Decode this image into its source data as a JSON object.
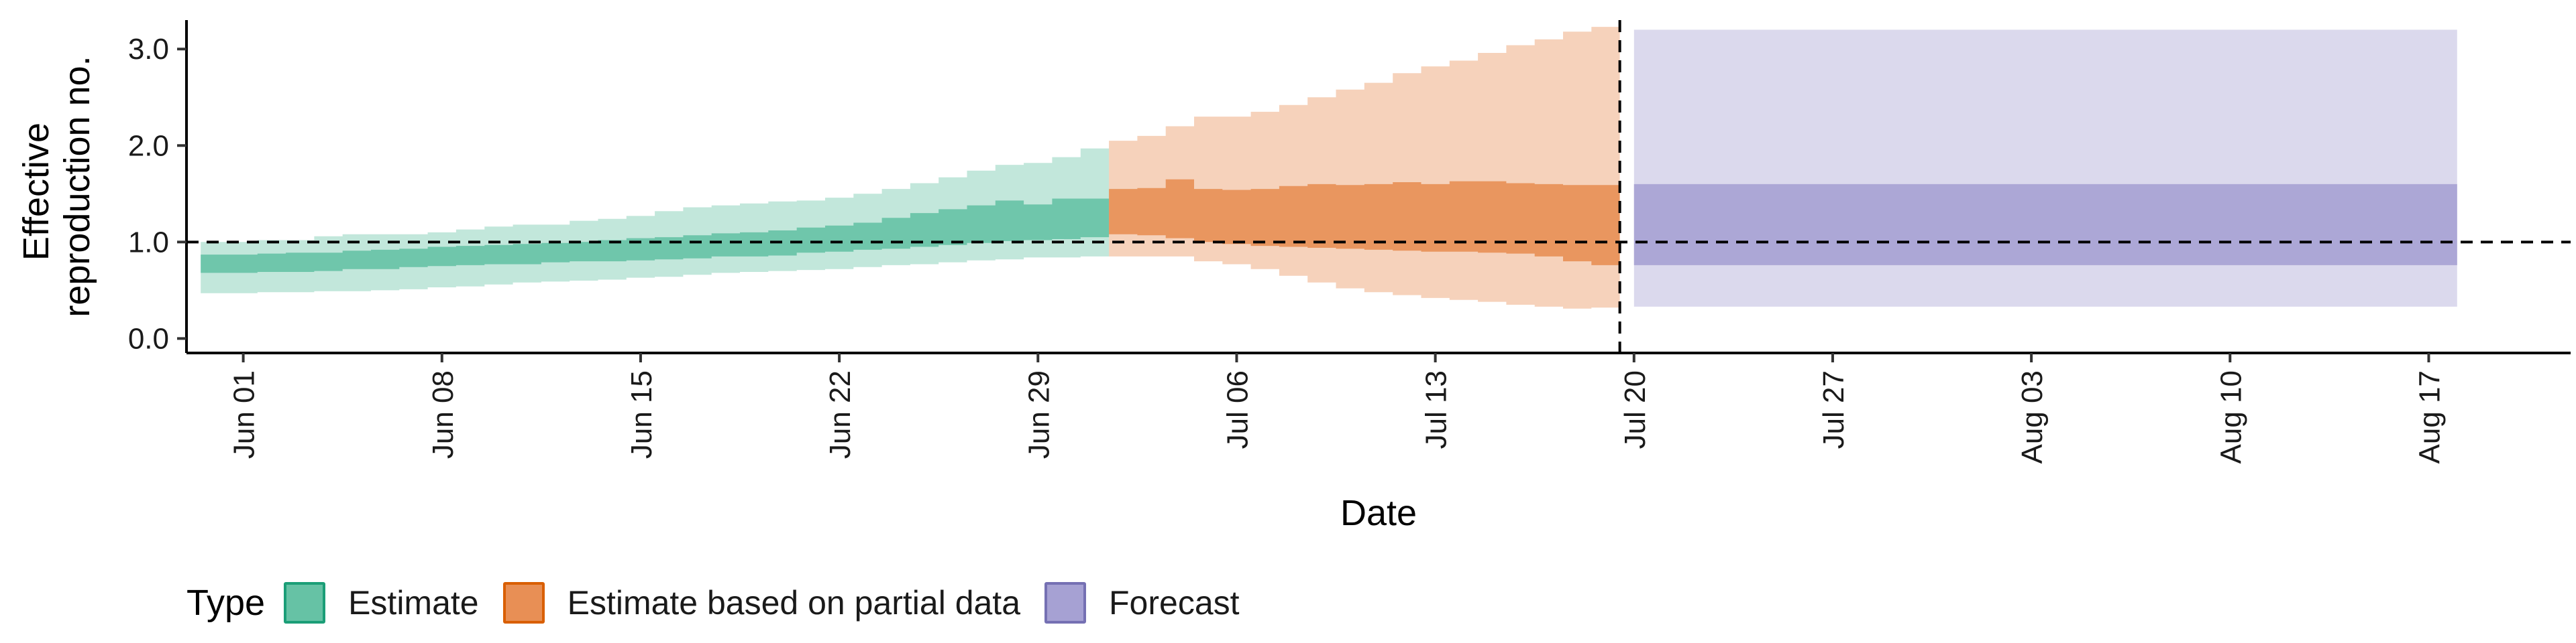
{
  "chart_data": {
    "type": "area",
    "title": "",
    "xlabel": "Date",
    "ylabel": [
      "Effective",
      "reproduction no."
    ],
    "ylim": [
      -0.15,
      3.3
    ],
    "y_ticks": [
      0,
      1,
      2,
      3
    ],
    "y_tick_labels": [
      "0.0",
      "1.0",
      "2.0",
      "3.0"
    ],
    "xlim": [
      "2020-05-30",
      "2020-08-22"
    ],
    "x_ticks": [
      "2020-06-01",
      "2020-06-08",
      "2020-06-15",
      "2020-06-22",
      "2020-06-29",
      "2020-07-06",
      "2020-07-13",
      "2020-07-20",
      "2020-07-27",
      "2020-08-03",
      "2020-08-10",
      "2020-08-17"
    ],
    "x_tick_labels": [
      "Jun 01",
      "Jun 08",
      "Jun 15",
      "Jun 22",
      "Jun 29",
      "Jul 06",
      "Jul 13",
      "Jul 20",
      "Jul 27",
      "Aug 03",
      "Aug 10",
      "Aug 17"
    ],
    "reference_line_y": 1.0,
    "forecast_start_line": "2020-07-19",
    "grid": false,
    "legend": {
      "title": "Type",
      "position": "bottom-left",
      "entries": [
        {
          "label": "Estimate",
          "fill": "#66c2a5",
          "border": "#1b9e77"
        },
        {
          "label": "Estimate based on partial data",
          "fill": "#e88f55",
          "border": "#d95f02"
        },
        {
          "label": "Forecast",
          "fill": "#a6a1d3",
          "border": "#7570b3"
        }
      ]
    },
    "series": [
      {
        "name": "Estimate",
        "color": "#1b9e77",
        "x": [
          "2020-05-31",
          "2020-06-01",
          "2020-06-02",
          "2020-06-03",
          "2020-06-04",
          "2020-06-05",
          "2020-06-06",
          "2020-06-07",
          "2020-06-08",
          "2020-06-09",
          "2020-06-10",
          "2020-06-11",
          "2020-06-12",
          "2020-06-13",
          "2020-06-14",
          "2020-06-15",
          "2020-06-16",
          "2020-06-17",
          "2020-06-18",
          "2020-06-19",
          "2020-06-20",
          "2020-06-21",
          "2020-06-22",
          "2020-06-23",
          "2020-06-24",
          "2020-06-25",
          "2020-06-26",
          "2020-06-27",
          "2020-06-28",
          "2020-06-29",
          "2020-06-30",
          "2020-07-01"
        ],
        "lower_90": [
          0.47,
          0.47,
          0.48,
          0.48,
          0.49,
          0.49,
          0.5,
          0.51,
          0.53,
          0.54,
          0.56,
          0.58,
          0.59,
          0.6,
          0.61,
          0.63,
          0.64,
          0.66,
          0.68,
          0.69,
          0.7,
          0.71,
          0.72,
          0.74,
          0.76,
          0.77,
          0.79,
          0.81,
          0.82,
          0.84,
          0.84,
          0.85
        ],
        "upper_90": [
          1.0,
          1.0,
          1.02,
          1.02,
          1.06,
          1.08,
          1.08,
          1.08,
          1.1,
          1.13,
          1.16,
          1.18,
          1.18,
          1.22,
          1.24,
          1.27,
          1.32,
          1.36,
          1.38,
          1.4,
          1.42,
          1.43,
          1.46,
          1.5,
          1.55,
          1.61,
          1.67,
          1.74,
          1.8,
          1.82,
          1.88,
          1.97
        ],
        "lower_50": [
          0.68,
          0.68,
          0.69,
          0.69,
          0.7,
          0.72,
          0.72,
          0.74,
          0.75,
          0.76,
          0.77,
          0.77,
          0.79,
          0.8,
          0.8,
          0.81,
          0.82,
          0.83,
          0.85,
          0.85,
          0.86,
          0.89,
          0.9,
          0.92,
          0.93,
          0.95,
          0.97,
          0.99,
          1.01,
          1.02,
          1.03,
          1.05
        ],
        "upper_50": [
          0.87,
          0.87,
          0.88,
          0.89,
          0.89,
          0.91,
          0.92,
          0.93,
          0.95,
          0.96,
          0.97,
          0.98,
          0.99,
          1.0,
          1.02,
          1.04,
          1.05,
          1.07,
          1.09,
          1.1,
          1.12,
          1.15,
          1.17,
          1.2,
          1.25,
          1.3,
          1.34,
          1.38,
          1.43,
          1.39,
          1.45,
          1.45
        ]
      },
      {
        "name": "Estimate based on partial data",
        "color": "#d95f02",
        "x": [
          "2020-07-02",
          "2020-07-03",
          "2020-07-04",
          "2020-07-05",
          "2020-07-06",
          "2020-07-07",
          "2020-07-08",
          "2020-07-09",
          "2020-07-10",
          "2020-07-11",
          "2020-07-12",
          "2020-07-13",
          "2020-07-14",
          "2020-07-15",
          "2020-07-16",
          "2020-07-17",
          "2020-07-18",
          "2020-07-19"
        ],
        "lower_90": [
          0.85,
          0.85,
          0.85,
          0.8,
          0.77,
          0.72,
          0.65,
          0.58,
          0.52,
          0.48,
          0.45,
          0.42,
          0.4,
          0.38,
          0.35,
          0.33,
          0.31,
          0.32
        ],
        "upper_90": [
          2.05,
          2.1,
          2.2,
          2.3,
          2.3,
          2.35,
          2.42,
          2.5,
          2.58,
          2.65,
          2.75,
          2.82,
          2.88,
          2.96,
          3.04,
          3.1,
          3.18,
          3.23
        ],
        "lower_50": [
          1.08,
          1.07,
          1.04,
          1.0,
          0.98,
          0.96,
          0.95,
          0.94,
          0.93,
          0.92,
          0.91,
          0.9,
          0.9,
          0.89,
          0.88,
          0.85,
          0.8,
          0.76
        ],
        "upper_50": [
          1.55,
          1.56,
          1.65,
          1.55,
          1.54,
          1.55,
          1.58,
          1.6,
          1.59,
          1.6,
          1.62,
          1.6,
          1.63,
          1.63,
          1.61,
          1.6,
          1.59,
          1.59
        ]
      },
      {
        "name": "Forecast",
        "color": "#7570b3",
        "x": [
          "2020-07-20",
          "2020-08-18"
        ],
        "lower_90": [
          0.33,
          0.33
        ],
        "upper_90": [
          3.2,
          3.2
        ],
        "lower_50": [
          0.76,
          0.76
        ],
        "upper_50": [
          1.6,
          1.6
        ]
      }
    ]
  }
}
